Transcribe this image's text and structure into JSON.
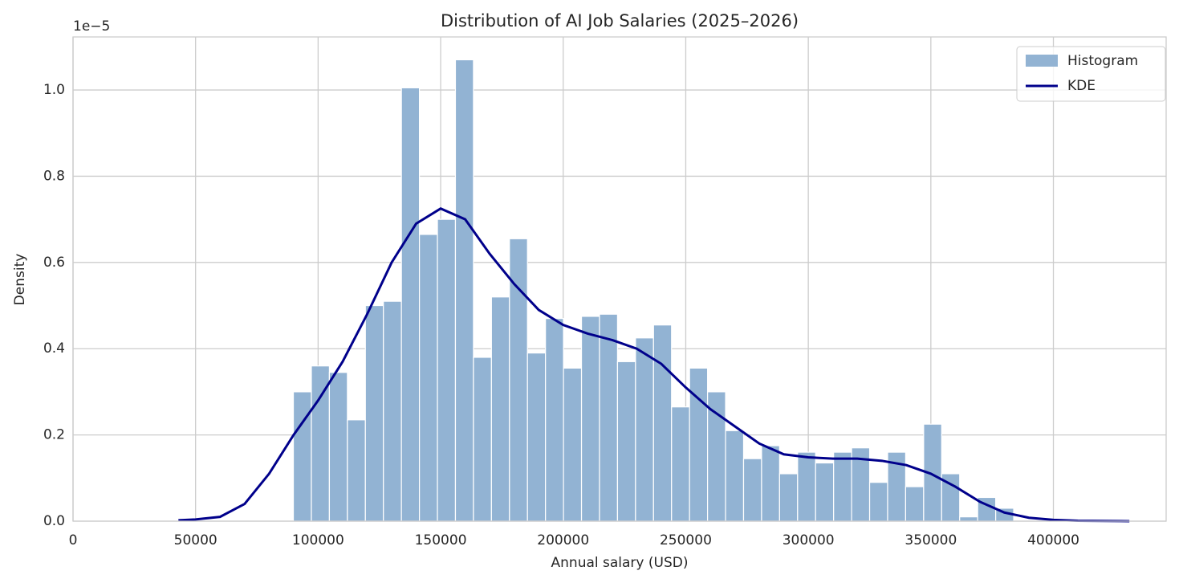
{
  "chart_data": {
    "type": "histogram",
    "title": "Distribution of AI Job Salaries (2025–2026)",
    "x_label": "Annual salary (USD)",
    "y_label": "Density",
    "y_offset_label": "1e−5",
    "xlim": [
      0,
      446000
    ],
    "ylim": [
      0,
      1.123
    ],
    "xticks": [
      0,
      50000,
      100000,
      150000,
      200000,
      250000,
      300000,
      350000,
      400000
    ],
    "yticks": [
      {
        "value": 0,
        "label": "0.0"
      },
      0.2,
      0.4,
      0.6,
      0.8,
      {
        "value": 1,
        "label": "1.0"
      }
    ],
    "grid": true,
    "legend": "upper right",
    "histogram": {
      "name": "Histogram",
      "color": "#92b3d3",
      "bins": [
        89900,
        97248,
        104595,
        111943,
        119290,
        126638,
        133985,
        141333,
        148680,
        156028,
        163375,
        170723,
        178070,
        185418,
        192765,
        200113,
        207460,
        214808,
        222155,
        229503,
        236850,
        244198,
        251545,
        258893,
        266240,
        273588,
        280935,
        288283,
        295630,
        302978,
        310325,
        317673,
        325020,
        332368,
        339715,
        347063,
        354410,
        361758,
        369105,
        376453,
        383800
      ],
      "values": [
        0.3,
        0.36,
        0.345,
        0.235,
        0.5,
        0.51,
        1.005,
        0.665,
        0.7,
        1.07,
        0.38,
        0.52,
        0.655,
        0.39,
        0.47,
        0.355,
        0.475,
        0.48,
        0.37,
        0.425,
        0.455,
        0.265,
        0.355,
        0.3,
        0.21,
        0.145,
        0.175,
        0.11,
        0.16,
        0.135,
        0.16,
        0.17,
        0.09,
        0.16,
        0.08,
        0.225,
        0.11,
        0.01,
        0.055,
        0.03
      ]
    },
    "kde": {
      "name": "KDE",
      "color": "#00008b",
      "x": [
        43000,
        50000,
        60000,
        70000,
        80000,
        90000,
        100000,
        110000,
        120000,
        130000,
        140000,
        150000,
        160000,
        170000,
        180000,
        190000,
        200000,
        210000,
        220000,
        230000,
        240000,
        250000,
        260000,
        270000,
        280000,
        290000,
        300000,
        310000,
        320000,
        330000,
        340000,
        350000,
        360000,
        370000,
        380000,
        390000,
        400000,
        410000,
        431000
      ],
      "values": [
        0.002,
        0.004,
        0.01,
        0.04,
        0.11,
        0.2,
        0.28,
        0.37,
        0.48,
        0.6,
        0.69,
        0.725,
        0.7,
        0.62,
        0.55,
        0.49,
        0.455,
        0.435,
        0.42,
        0.4,
        0.365,
        0.31,
        0.26,
        0.22,
        0.18,
        0.155,
        0.148,
        0.145,
        0.145,
        0.14,
        0.13,
        0.11,
        0.08,
        0.045,
        0.02,
        0.008,
        0.003,
        0.001,
        0
      ]
    }
  }
}
